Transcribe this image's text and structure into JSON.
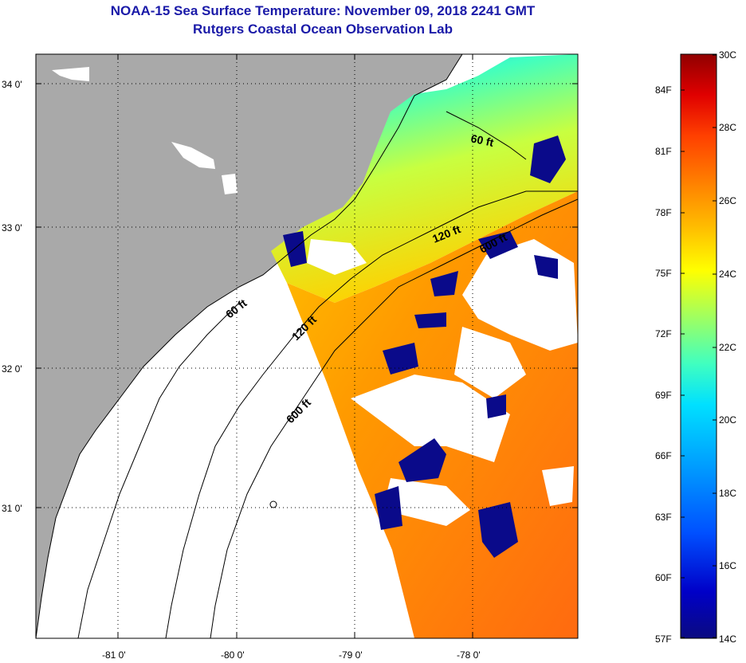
{
  "title": {
    "line1": "NOAA-15 Sea Surface Temperature:  November 09, 2018 2241 GMT",
    "line2": "Rutgers Coastal Ocean Observation Lab"
  },
  "map": {
    "lat_ticks": [
      "34 0'",
      "33 0'",
      "32 0'",
      "31 0'"
    ],
    "lon_ticks": [
      "-81 0'",
      "-80 0'",
      "-79 0'",
      "-78 0'"
    ],
    "contour_labels": [
      "60 ft",
      "120 ft",
      "600 ft",
      "60 ft",
      "120 ft",
      "600 ft"
    ],
    "colors": {
      "land": "#a9a9a9",
      "no_data": "#ffffff",
      "grid": "#000000"
    }
  },
  "colorbar": {
    "celsius_labels": [
      "30C",
      "28C",
      "26C",
      "24C",
      "22C",
      "20C",
      "18C",
      "16C",
      "14C"
    ],
    "fahrenheit_labels": [
      "84F",
      "81F",
      "78F",
      "75F",
      "72F",
      "69F",
      "66F",
      "63F",
      "60F",
      "57F"
    ],
    "colors": [
      "#0a0a80",
      "#0000c8",
      "#0050ff",
      "#00a0ff",
      "#00e0ff",
      "#40ffc0",
      "#a0ff60",
      "#ffff00",
      "#ffc000",
      "#ff8000",
      "#ff4000",
      "#e00000",
      "#900000"
    ]
  }
}
